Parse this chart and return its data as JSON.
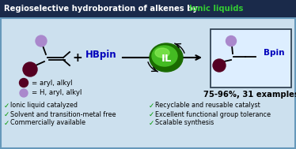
{
  "title_text": "Regioselective hydroboration of alkenes by ",
  "title_highlight": "Ionic liquids",
  "title_bg": "#1a2a4a",
  "title_text_color": "#ffffff",
  "title_highlight_color": "#33cc33",
  "body_bg": "#cce0ee",
  "border_color": "#6699bb",
  "hbpin_color": "#0000bb",
  "bpin_color": "#0000bb",
  "il_text_color": "#ffffff",
  "dark_ball_color": "#550022",
  "light_ball_color": "#aa88cc",
  "result_text": "75-96%, 31 examples",
  "legend1_text": "= aryl, alkyl",
  "legend2_text": "= H, aryl, alkyl",
  "left_bullets": [
    "Ionic liquid catalyzed",
    "Solvent and transition-metal free",
    "Commercially available"
  ],
  "right_bullets": [
    "Recyclable and reusable catalyst",
    "Excellent functional group tolerance",
    "Scalable synthesis"
  ],
  "bullet_color": "#009900"
}
